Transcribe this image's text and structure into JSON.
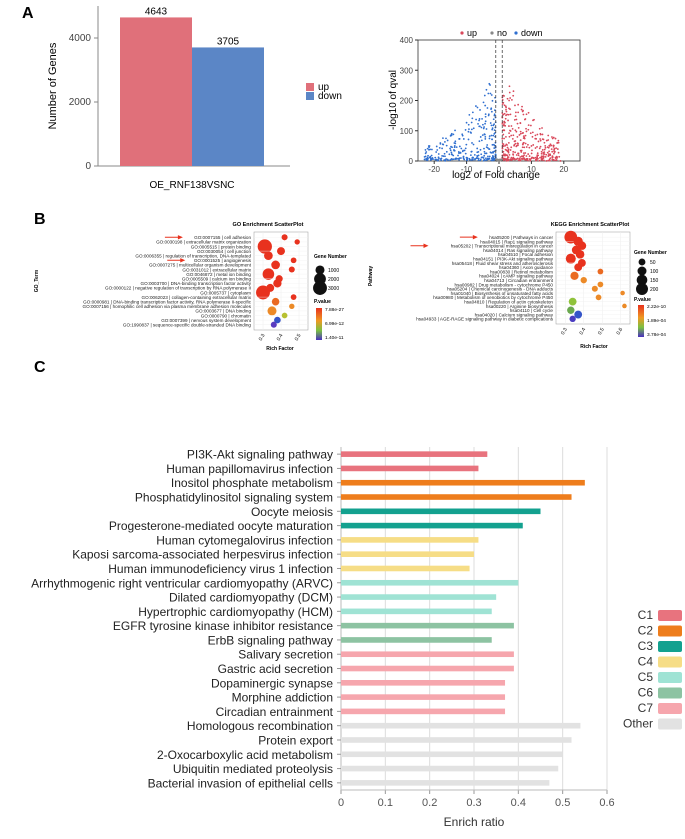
{
  "panels": {
    "a": "A",
    "b": "B",
    "c": "C"
  },
  "chart_data": [
    {
      "id": "bar_updown",
      "type": "bar",
      "categories": [
        "OE_RNF138VSNC"
      ],
      "series": [
        {
          "name": "up",
          "values": [
            4643
          ],
          "color": "#e0707a"
        },
        {
          "name": "down",
          "values": [
            3705
          ],
          "color": "#5b86c6"
        }
      ],
      "value_labels": [
        "4643",
        "3705"
      ],
      "ylabel": "Number of Genes",
      "xlabel": "OE_RNF138VSNC",
      "ylim": [
        0,
        5000
      ],
      "yticks": [
        0,
        2000,
        4000
      ],
      "ytick_labels": [
        "0",
        "2000",
        "4000"
      ],
      "legend": [
        "up",
        "down"
      ]
    },
    {
      "id": "volcano",
      "type": "scatter",
      "xlabel": "log2 of Fold change",
      "ylabel": "-log10 of qval",
      "xlim": [
        -25,
        25
      ],
      "ylim": [
        0,
        400
      ],
      "xticks": [
        -20,
        -10,
        0,
        10,
        20
      ],
      "xtick_labels": [
        "-20",
        "-10",
        "0",
        "10",
        "20"
      ],
      "yticks": [
        0,
        100,
        200,
        300,
        400
      ],
      "ytick_labels": [
        "0",
        "100",
        "200",
        "300",
        "400"
      ],
      "legend": [
        {
          "label": "up",
          "color": "#d9485a"
        },
        {
          "label": "no",
          "color": "#888888"
        },
        {
          "label": "down",
          "color": "#2f6fd0"
        }
      ],
      "threshold_x": [
        -1,
        1
      ]
    },
    {
      "id": "go_scatter",
      "type": "scatter",
      "title": "GO Enrichment ScatterPlot",
      "ylabel": "GO_Term",
      "xlabel": "Rich Factor",
      "xlim": [
        0.25,
        0.55
      ],
      "xticks": [
        0.3,
        0.4,
        0.5
      ],
      "xtick_labels": [
        "0.3",
        "0.4",
        "0.5"
      ],
      "terms": [
        "GO:0007155 | cell adhesion",
        "GO:0030198 | extracellular matrix organization",
        "GO:0005515 | protein binding",
        "GO:0030054 | cell junction",
        "GO:0006355 | regulation of transcription, DNA-templated",
        "GO:0001525 | angiogenesis",
        "GO:0007275 | multicellular organism development",
        "GO:0031012 | extracellular matrix",
        "GO:0046872 | metal ion binding",
        "GO:0005509 | calcium ion binding",
        "GO:0003700 | DNA-binding transcription factor activity",
        "GO:0000122 | negative regulation of transcription by RNA polymerase II",
        "GO:0005737 | cytoplasm",
        "GO:0062023 | collagen-containing extracellular matrix",
        "GO:0000981 | DNA-binding transcription factor activity, RNA polymerase II-specific",
        "GO:0007156 | homophilic cell adhesion via plasma membrane adhesion molecules",
        "GO:0003677 | DNA binding",
        "GO:0000790 | chromatin",
        "GO:0007399 | nervous system development",
        "GO:1990837 | sequence-specific double-stranded DNA binding"
      ],
      "rich_factor": [
        0.42,
        0.49,
        0.31,
        0.4,
        0.33,
        0.47,
        0.37,
        0.46,
        0.33,
        0.39,
        0.38,
        0.34,
        0.3,
        0.47,
        0.37,
        0.46,
        0.35,
        0.42,
        0.38,
        0.36
      ],
      "gene_number": [
        300,
        200,
        3200,
        700,
        900,
        250,
        900,
        300,
        1900,
        500,
        800,
        700,
        3000,
        250,
        600,
        200,
        1000,
        250,
        400,
        300
      ],
      "colors": [
        "#e8321e",
        "#e8321e",
        "#e8321e",
        "#e8321e",
        "#e8321e",
        "#e8321e",
        "#e8321e",
        "#e8321e",
        "#e8321e",
        "#e8321e",
        "#e8321e",
        "#e8321e",
        "#e8321e",
        "#e8321e",
        "#ea6a22",
        "#eb8a26",
        "#ec8a28",
        "#b7c030",
        "#3454c8",
        "#5a3cc0"
      ],
      "highlighted": [
        "GO:0007155 | cell adhesion",
        "GO:0001525 | angiogenesis"
      ],
      "size_legend_title": "Gene Number",
      "size_legend": [
        "1000",
        "2000",
        "3000"
      ],
      "color_legend_title": "P.value",
      "color_legend": [
        "7.88e-27",
        "6.99e-12",
        "1.40e-11"
      ]
    },
    {
      "id": "kegg_scatter",
      "type": "scatter",
      "title": "KEGG Enrichment ScatterPlot",
      "ylabel": "Pathway",
      "xlabel": "Rich Factor",
      "xlim": [
        0.25,
        0.65
      ],
      "xticks": [
        0.3,
        0.4,
        0.5,
        0.6
      ],
      "xtick_labels": [
        "0.3",
        "0.4",
        "0.5",
        "0.6"
      ],
      "terms": [
        "hsa05200 | Pathways in cancer",
        "hsa04015 | Rap1 signaling pathway",
        "hsa05202 | Transcriptional misregulation in cancer",
        "hsa04014 | Ras signaling pathway",
        "hsa04510 | Focal adhesion",
        "hsa04151 | PI3K-Akt signaling pathway",
        "hsa05418 | Fluid shear stress and atherosclerosis",
        "hsa04360 | Axon guidance",
        "hsa00830 | Retinol metabolism",
        "hsa04024 | cAMP signaling pathway",
        "hsa04713 | Circadian entrainment",
        "hsa00982 | Drug metabolism - cytochrome P450",
        "hsa05204 | Chemical carcinogenesis - DNA adducts",
        "hsa01040 | Biosynthesis of unsaturated fatty acids",
        "hsa00980 | Metabolism of xenobiotics by cytochrome P450",
        "hsa04810 | Regulation of actin cytoskeleton",
        "hsa00220 | Arginine biosynthesis",
        "hsa04110 | Cell cycle",
        "hsa04020 | Calcium signaling pathway",
        "hsa04933 | AGE-RAGE signaling pathway in diabetic complications"
      ],
      "rich_factor": [
        0.33,
        0.37,
        0.39,
        0.36,
        0.38,
        0.33,
        0.39,
        0.37,
        0.49,
        0.35,
        0.4,
        0.49,
        0.46,
        0.61,
        0.48,
        0.34,
        0.62,
        0.33,
        0.37,
        0.34
      ],
      "gene_number": [
        230,
        110,
        90,
        100,
        90,
        130,
        70,
        70,
        30,
        80,
        40,
        30,
        35,
        15,
        30,
        70,
        15,
        60,
        70,
        40
      ],
      "colors": [
        "#e8321e",
        "#e8321e",
        "#e8321e",
        "#e8321e",
        "#e8321e",
        "#e8321e",
        "#e8321e",
        "#e8321e",
        "#ea6a22",
        "#ea6a22",
        "#ec8a28",
        "#ec8a28",
        "#ec8a28",
        "#ec8a28",
        "#ec8a28",
        "#8fc23a",
        "#eb8a26",
        "#6aa84f",
        "#3454c8",
        "#4a3cc0"
      ],
      "highlighted": [
        "hsa05200 | Pathways in cancer",
        "hsa05202 | Transcriptional misregulation in cancer"
      ],
      "size_legend_title": "Gene Number",
      "size_legend": [
        "50",
        "100",
        "150",
        "200"
      ],
      "color_legend_title": "P.value",
      "color_legend": [
        "2.22e-10",
        "1.89e-04",
        "3.78e-04"
      ]
    },
    {
      "id": "enrich_ratio",
      "type": "bar",
      "orientation": "horizontal",
      "xlabel": "Enrich ratio",
      "xlim": [
        0,
        0.6
      ],
      "xticks": [
        0,
        0.1,
        0.2,
        0.3,
        0.4,
        0.5,
        0.6
      ],
      "xtick_labels": [
        "0",
        "0.1",
        "0.2",
        "0.3",
        "0.4",
        "0.5",
        "0.6"
      ],
      "categories": [
        "PI3K-Akt signaling pathway",
        "Human papillomavirus infection",
        "Inositol phosphate metabolism",
        "Phosphatidylinositol signaling system",
        "Oocyte meiosis",
        "Progesterone-mediated oocyte maturation",
        "Human cytomegalovirus infection",
        "Kaposi sarcoma-associated herpesvirus infection",
        "Human immunodeficiency virus 1 infection",
        "Arrhythmogenic right ventricular cardiomyopathy (ARVC)",
        "Dilated cardiomyopathy (DCM)",
        "Hypertrophic cardiomyopathy (HCM)",
        "EGFR tyrosine kinase inhibitor resistance",
        "ErbB signaling pathway",
        "Salivary secretion",
        "Gastric acid secretion",
        "Dopaminergic synapse",
        "Morphine addiction",
        "Circadian entrainment",
        "Homologous recombination",
        "Protein export",
        "2-Oxocarboxylic acid metabolism",
        "Ubiquitin mediated proteolysis",
        "Bacterial invasion of epithelial cells"
      ],
      "values": [
        0.33,
        0.31,
        0.55,
        0.52,
        0.45,
        0.41,
        0.31,
        0.3,
        0.29,
        0.4,
        0.35,
        0.34,
        0.39,
        0.34,
        0.39,
        0.39,
        0.37,
        0.37,
        0.37,
        0.54,
        0.52,
        0.5,
        0.49,
        0.47
      ],
      "groups": [
        "C1",
        "C1",
        "C2",
        "C2",
        "C3",
        "C3",
        "C4",
        "C4",
        "C4",
        "C5",
        "C5",
        "C5",
        "C6",
        "C6",
        "C7",
        "C7",
        "C7",
        "C7",
        "C7",
        "Other",
        "Other",
        "Other",
        "Other",
        "Other"
      ],
      "legend": [
        {
          "label": "C1",
          "color": "#e8737e"
        },
        {
          "label": "C2",
          "color": "#ee7d1c"
        },
        {
          "label": "C3",
          "color": "#13a18f"
        },
        {
          "label": "C4",
          "color": "#f6dd86"
        },
        {
          "label": "C5",
          "color": "#9fe3d4"
        },
        {
          "label": "C6",
          "color": "#8dc3a2"
        },
        {
          "label": "C7",
          "color": "#f6a6ad"
        },
        {
          "label": "Other",
          "color": "#e2e2e2"
        }
      ]
    }
  ]
}
